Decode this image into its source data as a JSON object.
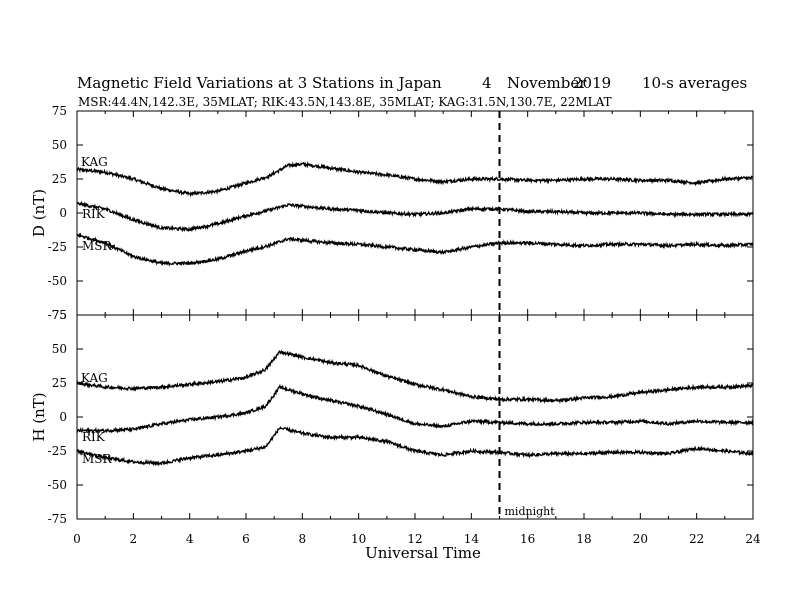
{
  "chart_data": [
    {
      "type": "line",
      "title": "Magnetic Field Variations at 3 Stations in Japan",
      "date_day": "4",
      "date_month": "November",
      "date_year": "2019",
      "averaging": "10-s averages",
      "subtitle": "MSR:44.4N,142.3E, 35MLAT;  RIK:43.5N,143.8E, 35MLAT;  KAG:31.5N,130.7E, 22MLAT",
      "ylabel": "D (nT)",
      "xlabel": "Universal Time",
      "ylim": [
        -75,
        75
      ],
      "xlim": [
        0,
        24
      ],
      "yticks": [
        75,
        50,
        25,
        0,
        -25,
        -50,
        -75
      ],
      "xticks": [
        0,
        2,
        4,
        6,
        8,
        10,
        12,
        14,
        16,
        18,
        20,
        22,
        24
      ],
      "annotations": [
        {
          "text": "midnight",
          "x": 15
        }
      ],
      "series": [
        {
          "name": "KAG",
          "x": [
            0,
            1,
            2,
            3,
            4,
            5,
            6,
            6.8,
            7.5,
            8,
            9,
            10,
            11,
            12,
            13,
            14,
            15,
            16,
            17,
            18,
            19,
            20,
            21,
            22,
            23,
            24
          ],
          "values": [
            32,
            30,
            25,
            18,
            14,
            16,
            22,
            27,
            35,
            36,
            33,
            30,
            28,
            25,
            23,
            25,
            25,
            24,
            24,
            25,
            25,
            24,
            24,
            22,
            25,
            26
          ]
        },
        {
          "name": "RIK",
          "x": [
            0,
            1,
            2,
            3,
            4,
            5,
            6,
            6.8,
            7.5,
            8,
            9,
            10,
            11,
            12,
            13,
            14,
            15,
            16,
            17,
            18,
            19,
            20,
            21,
            22,
            23,
            24
          ],
          "values": [
            7,
            3,
            -5,
            -11,
            -12,
            -8,
            -2,
            2,
            6,
            5,
            3,
            2,
            0,
            -1,
            0,
            3,
            3,
            1,
            1,
            0,
            0,
            0,
            -1,
            -1,
            -1,
            -1
          ]
        },
        {
          "name": "MSR",
          "x": [
            0,
            1,
            2,
            3,
            4,
            5,
            6,
            6.8,
            7.5,
            8,
            9,
            10,
            11,
            12,
            13,
            14,
            15,
            16,
            17,
            18,
            19,
            20,
            21,
            22,
            23,
            24
          ],
          "values": [
            -16,
            -22,
            -32,
            -37,
            -37,
            -34,
            -28,
            -24,
            -19,
            -20,
            -22,
            -23,
            -25,
            -27,
            -29,
            -25,
            -22,
            -22,
            -23,
            -24,
            -23,
            -23,
            -24,
            -23,
            -24,
            -23
          ]
        }
      ]
    },
    {
      "type": "line",
      "ylabel": "H (nT)",
      "xlabel": "Universal Time",
      "ylim": [
        -75,
        75
      ],
      "xlim": [
        0,
        24
      ],
      "yticks": [
        75,
        50,
        25,
        0,
        -25,
        -50,
        -75
      ],
      "xticks": [
        0,
        2,
        4,
        6,
        8,
        10,
        12,
        14,
        16,
        18,
        20,
        22,
        24
      ],
      "series": [
        {
          "name": "KAG",
          "x": [
            0,
            1,
            2,
            3,
            4,
            5,
            6,
            6.7,
            7.2,
            8,
            9,
            10,
            11,
            12,
            13,
            14,
            15,
            16,
            17,
            18,
            19,
            20,
            21,
            22,
            23,
            24
          ],
          "values": [
            25,
            22,
            21,
            22,
            24,
            26,
            29,
            35,
            48,
            44,
            40,
            38,
            30,
            24,
            20,
            15,
            13,
            13,
            12,
            14,
            15,
            18,
            20,
            22,
            22,
            23
          ]
        },
        {
          "name": "RIK",
          "x": [
            0,
            1,
            2,
            3,
            4,
            5,
            6,
            6.7,
            7.2,
            8,
            9,
            10,
            11,
            12,
            13,
            14,
            15,
            16,
            17,
            18,
            19,
            20,
            21,
            22,
            23,
            24
          ],
          "values": [
            -10,
            -10,
            -9,
            -5,
            -2,
            0,
            3,
            8,
            22,
            17,
            12,
            8,
            2,
            -5,
            -7,
            -3,
            -4,
            -5,
            -5,
            -4,
            -4,
            -3,
            -5,
            -3,
            -4,
            -4
          ]
        },
        {
          "name": "MSR",
          "x": [
            0,
            1,
            2,
            3,
            4,
            5,
            6,
            6.7,
            7.2,
            8,
            9,
            10,
            11,
            12,
            13,
            14,
            15,
            16,
            17,
            18,
            19,
            20,
            21,
            22,
            23,
            24
          ],
          "values": [
            -25,
            -30,
            -33,
            -34,
            -30,
            -28,
            -25,
            -22,
            -8,
            -12,
            -15,
            -15,
            -18,
            -25,
            -28,
            -25,
            -26,
            -28,
            -27,
            -27,
            -26,
            -26,
            -27,
            -23,
            -25,
            -27
          ]
        }
      ]
    }
  ]
}
